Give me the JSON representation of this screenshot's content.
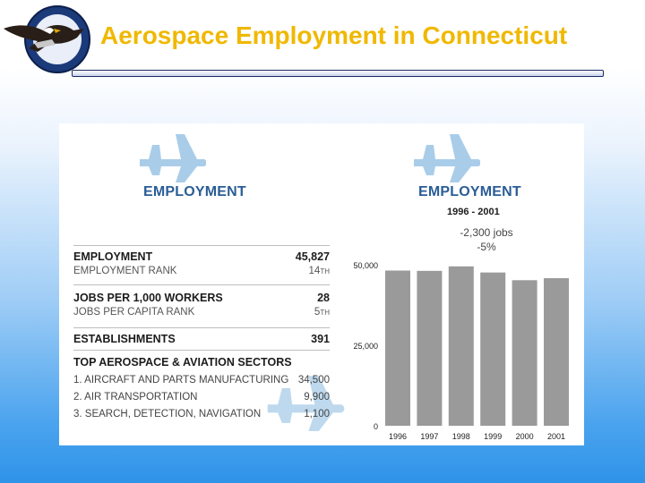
{
  "header": {
    "title": "Aerospace Employment in Connecticut",
    "logo_text": "PRATT & WHITNEY · DEPENDABLE ENGINES"
  },
  "left": {
    "heading": "EMPLOYMENT",
    "employment_label": "EMPLOYMENT",
    "employment_value": "45,827",
    "employment_rank_label": "EMPLOYMENT RANK",
    "employment_rank_value": "14",
    "employment_rank_suffix": "TH",
    "jobs_label": "JOBS PER 1,000 WORKERS",
    "jobs_value": "28",
    "jobs_rank_label": "JOBS PER CAPITA RANK",
    "jobs_rank_value": "5",
    "jobs_rank_suffix": "TH",
    "establishments_label": "ESTABLISHMENTS",
    "establishments_value": "391",
    "sectors_title": "TOP AEROSPACE & AVIATION SECTORS",
    "sectors": [
      {
        "label": "1. AIRCRAFT AND PARTS MANUFACTURING",
        "value": "34,500"
      },
      {
        "label": "2. AIR TRANSPORTATION",
        "value": "9,900"
      },
      {
        "label": "3. SEARCH, DETECTION, NAVIGATION",
        "value": "1,100"
      }
    ]
  },
  "right": {
    "heading": "EMPLOYMENT",
    "subheading": "1996 - 2001",
    "annotation_jobs": "-2,300 jobs",
    "annotation_pct": "-5%"
  },
  "chart_data": {
    "type": "bar",
    "title": "EMPLOYMENT",
    "subtitle": "1996 - 2001",
    "categories": [
      "1996",
      "1997",
      "1998",
      "1999",
      "2000",
      "2001"
    ],
    "values": [
      48200,
      48100,
      49500,
      47600,
      45200,
      45827
    ],
    "ylim": [
      0,
      50000
    ],
    "yticks": [
      0,
      25000,
      50000
    ],
    "ytick_labels": [
      "0",
      "25,000",
      "50,000"
    ],
    "annotations": [
      "-2,300 jobs",
      "-5%"
    ],
    "grid": false,
    "bar_color": "#9a9a9a"
  }
}
